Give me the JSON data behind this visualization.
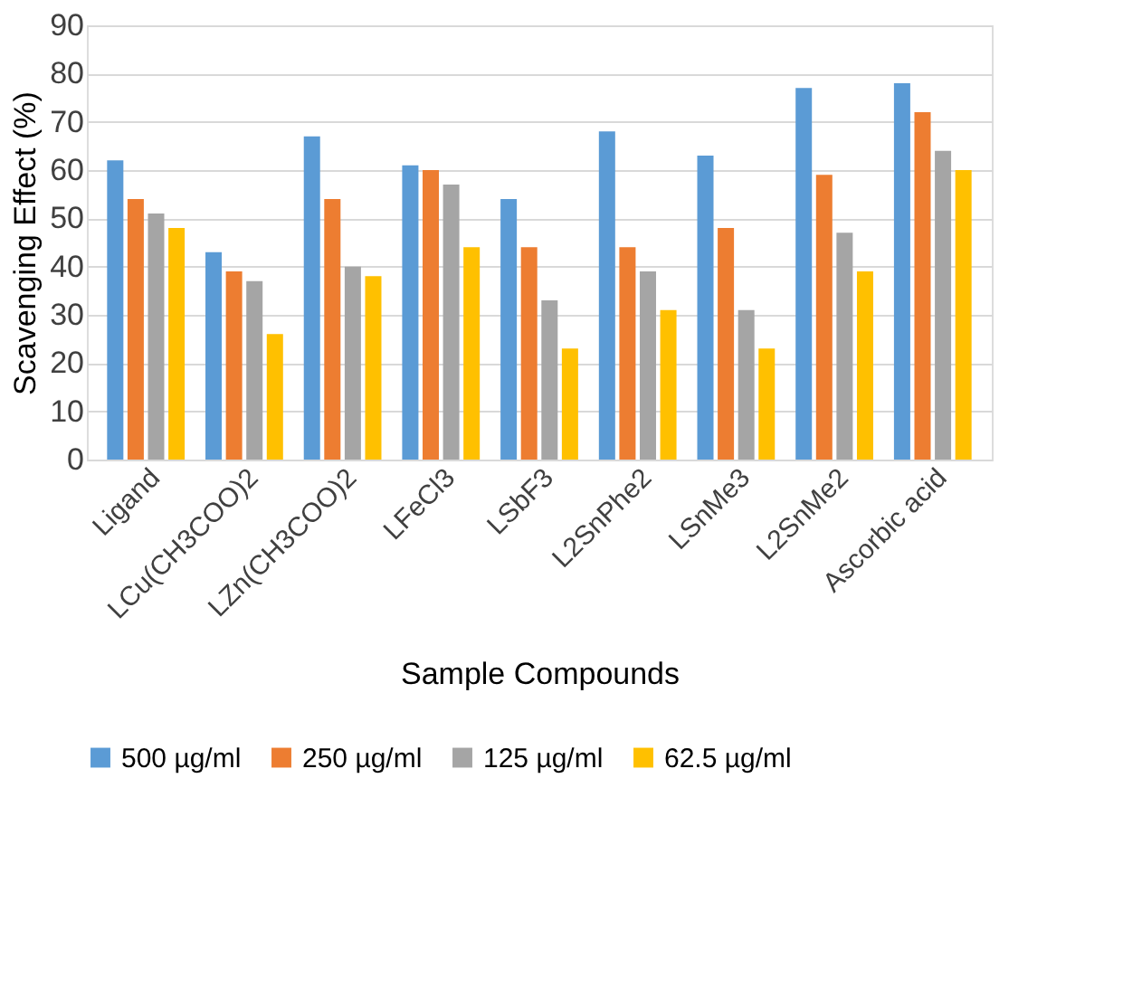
{
  "chart_data": {
    "type": "bar",
    "xlabel": "Sample Compounds",
    "ylabel": "Scavenging Effect (%)",
    "categories": [
      "Ligand",
      "LCu(CH3COO)2",
      "LZn(CH3COO)2",
      "LFeCl3",
      "LSbF3",
      "L2SnPhe2",
      "LSnMe3",
      "L2SnMe2",
      "Ascorbic acid"
    ],
    "series": [
      {
        "name": "500 µg/ml",
        "color": "#5b9bd5",
        "values": [
          62,
          43,
          67,
          61,
          54,
          68,
          63,
          77,
          78
        ]
      },
      {
        "name": "250 µg/ml",
        "color": "#ed7d31",
        "values": [
          54,
          39,
          54,
          60,
          44,
          44,
          48,
          59,
          72
        ]
      },
      {
        "name": "125 µg/ml",
        "color": "#a5a5a5",
        "values": [
          51,
          37,
          40,
          57,
          33,
          39,
          31,
          47,
          64
        ]
      },
      {
        "name": "62.5 µg/ml",
        "color": "#ffc000",
        "values": [
          48,
          26,
          38,
          44,
          23,
          31,
          23,
          39,
          60
        ]
      }
    ],
    "ylim": [
      0,
      90
    ],
    "yticks": [
      0,
      10,
      20,
      30,
      40,
      50,
      60,
      70,
      80,
      90
    ],
    "grid": "y",
    "legend": "bottom"
  }
}
